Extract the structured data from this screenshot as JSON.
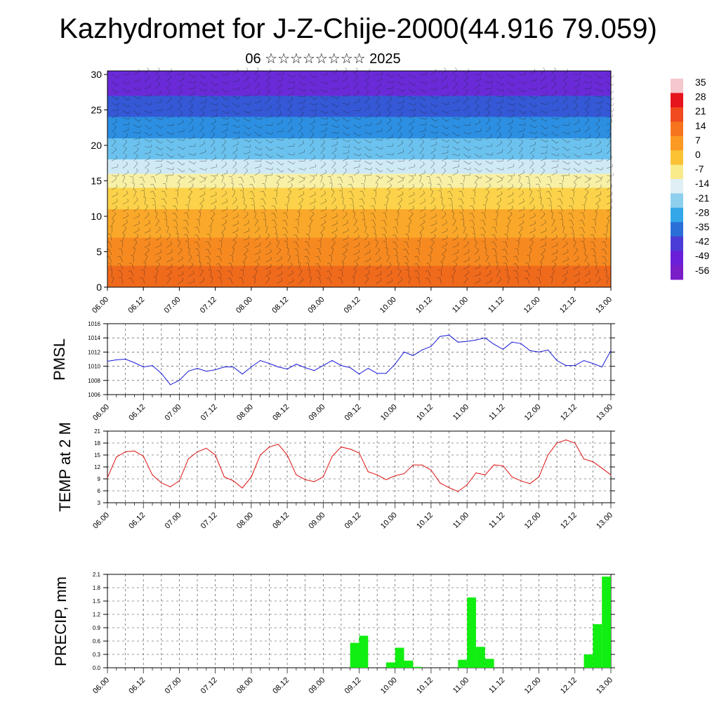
{
  "page": {
    "title": "Kazhydromet for J-Z-Chije-2000(44.916 79.059)",
    "subtitle": "06 ☆☆☆☆☆☆☆☆ 2025"
  },
  "chart_data": [
    {
      "type": "heatmap",
      "name": "cross-section",
      "description_free": true,
      "x_tick_labels": [
        "06.00",
        "06.12",
        "07.00",
        "07.12",
        "08.00",
        "08.12",
        "09.00",
        "09.12",
        "10.00",
        "10.12",
        "11.00",
        "11.12",
        "12.00",
        "12.12",
        "13.00"
      ],
      "y_tick_labels": [
        "0",
        "5",
        "10",
        "15",
        "20",
        "25",
        "30"
      ],
      "ylim": [
        0,
        30.5
      ],
      "colorbar_labels": [
        "35",
        "28",
        "21",
        "14",
        "7",
        "0",
        "-7",
        "-14",
        "-21",
        "-28",
        "-35",
        "-42",
        "-49",
        "-56"
      ],
      "colorbar_colors": [
        "#f4c8cc",
        "#e6141c",
        "#f04a1e",
        "#f6741e",
        "#fa9a22",
        "#fbc234",
        "#f9ea8a",
        "#dfeff5",
        "#8ecfee",
        "#33a7e7",
        "#2a6fd8",
        "#4a3cd6",
        "#6a1fd8",
        "#7a1ec8"
      ],
      "bands": [
        {
          "from": 0,
          "to": 3,
          "color": "#f06a1c"
        },
        {
          "from": 3,
          "to": 7,
          "color": "#f68a20"
        },
        {
          "from": 7,
          "to": 11,
          "color": "#faa82a"
        },
        {
          "from": 11,
          "to": 14,
          "color": "#fbd24a"
        },
        {
          "from": 14,
          "to": 16,
          "color": "#f7f0a6"
        },
        {
          "from": 16,
          "to": 18,
          "color": "#cfe9f5"
        },
        {
          "from": 18,
          "to": 21,
          "color": "#6cc2ee"
        },
        {
          "from": 21,
          "to": 24,
          "color": "#2c8fe2"
        },
        {
          "from": 24,
          "to": 27,
          "color": "#3458d6"
        },
        {
          "from": 27,
          "to": 30.5,
          "color": "#6a2ad8"
        }
      ]
    },
    {
      "type": "line",
      "ylabel": "PMSL",
      "ylim": [
        1006,
        1016
      ],
      "y_ticks": [
        "1006",
        "1008",
        "1010",
        "1012",
        "1014",
        "1016"
      ],
      "x_tick_labels": [
        "06.00",
        "06.12",
        "07.00",
        "07.12",
        "08.00",
        "08.12",
        "09.00",
        "09.12",
        "10.00",
        "10.12",
        "11.00",
        "11.12",
        "12.00",
        "12.12",
        "13.00"
      ],
      "color": "#1a1ad6",
      "x_hours": [
        0,
        3,
        6,
        9,
        12,
        15,
        18,
        21,
        24,
        27,
        30,
        33,
        36,
        39,
        42,
        45,
        48,
        51,
        54,
        57,
        60,
        63,
        66,
        69,
        72,
        75,
        78,
        81,
        84,
        87,
        90,
        93,
        96,
        99,
        102,
        105,
        108,
        111,
        114,
        117,
        120,
        123,
        126,
        129,
        132,
        135,
        138,
        141,
        144,
        147,
        150,
        153,
        156,
        159,
        162,
        165,
        168
      ],
      "values": [
        1010.7,
        1010.9,
        1011.0,
        1010.5,
        1009.9,
        1010.1,
        1009.0,
        1007.4,
        1008.0,
        1009.3,
        1009.7,
        1009.3,
        1009.5,
        1009.9,
        1009.9,
        1008.9,
        1009.9,
        1010.8,
        1010.4,
        1009.9,
        1009.6,
        1010.3,
        1009.8,
        1009.4,
        1010.1,
        1010.8,
        1010.1,
        1009.8,
        1008.9,
        1009.7,
        1009.0,
        1009.0,
        1010.3,
        1012.0,
        1011.5,
        1012.3,
        1012.8,
        1014.2,
        1014.4,
        1013.4,
        1013.5,
        1013.7,
        1014.0,
        1013.1,
        1012.4,
        1013.4,
        1013.2,
        1012.2,
        1012.0,
        1012.3,
        1010.8,
        1010.1,
        1010.1,
        1010.8,
        1010.4,
        1009.9,
        1012.2
      ]
    },
    {
      "type": "line",
      "ylabel": "TEMP at 2 M",
      "ylim": [
        3,
        21
      ],
      "y_ticks": [
        "3",
        "6",
        "9",
        "12",
        "15",
        "18",
        "21"
      ],
      "x_tick_labels": [
        "06.00",
        "06.12",
        "07.00",
        "07.12",
        "08.00",
        "08.12",
        "09.00",
        "09.12",
        "10.00",
        "10.12",
        "11.00",
        "11.12",
        "12.00",
        "12.12",
        "13.00"
      ],
      "color": "#dd1111",
      "x_hours": [
        0,
        3,
        6,
        9,
        12,
        15,
        18,
        21,
        24,
        27,
        30,
        33,
        36,
        39,
        42,
        45,
        48,
        51,
        54,
        57,
        60,
        63,
        66,
        69,
        72,
        75,
        78,
        81,
        84,
        87,
        90,
        93,
        96,
        99,
        102,
        105,
        108,
        111,
        114,
        117,
        120,
        123,
        126,
        129,
        132,
        135,
        138,
        141,
        144,
        147,
        150,
        153,
        156,
        159,
        162,
        165,
        168
      ],
      "values": [
        9.3,
        14.5,
        15.8,
        16.0,
        14.7,
        10.0,
        8.0,
        7.0,
        8.5,
        14.0,
        15.8,
        16.7,
        15.0,
        9.5,
        8.5,
        6.7,
        9.5,
        15.0,
        17.0,
        17.7,
        15.0,
        10.0,
        8.8,
        8.3,
        9.5,
        14.7,
        17.0,
        16.5,
        15.5,
        10.8,
        10.0,
        8.8,
        9.8,
        10.3,
        12.5,
        12.5,
        11.2,
        8.0,
        6.8,
        5.8,
        7.5,
        10.5,
        10.0,
        12.5,
        12.3,
        9.5,
        8.5,
        7.8,
        9.5,
        15.0,
        18.0,
        18.8,
        18.0,
        14.0,
        13.3,
        11.7,
        10.0
      ]
    },
    {
      "type": "bar",
      "ylabel": "PRECIP, mm",
      "ylim": [
        0,
        2.1
      ],
      "y_ticks": [
        "0.0",
        "0.3",
        "0.6",
        "0.9",
        "1.2",
        "1.5",
        "1.8",
        "2.1"
      ],
      "x_tick_labels": [
        "06.00",
        "06.12",
        "07.00",
        "07.12",
        "08.00",
        "08.12",
        "09.00",
        "09.12",
        "10.00",
        "10.12",
        "11.00",
        "11.12",
        "12.00",
        "12.12",
        "13.00"
      ],
      "color": "#11ee11",
      "bar_hours": [
        84,
        87,
        96,
        99,
        102,
        105,
        120,
        123,
        126,
        129,
        162,
        165,
        168
      ],
      "values": [
        0.56,
        0.72,
        0.12,
        0.45,
        0.16,
        0.02,
        0.18,
        1.58,
        0.47,
        0.2,
        0.3,
        0.98,
        2.05
      ]
    }
  ]
}
